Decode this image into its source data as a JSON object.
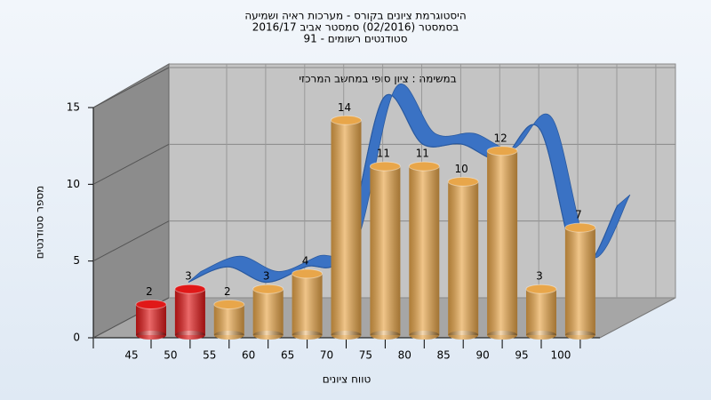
{
  "chart_data": {
    "type": "bar3d",
    "title": "היסטוגרמת ציונים בקורס - מערכות ראיה ושמיעה",
    "subtitle_lines": [
      "בסמסטר  (02/2016)  סמסטר אביב 2016/17",
      "סטודנטים רשומים - 91"
    ],
    "annotation": "במשימה : ציון סופי במחשב המרכזי",
    "x_label": "טווח ציונים",
    "y_label": "מספר סטודנטים",
    "categories": [
      "45",
      "50",
      "55",
      "60",
      "65",
      "70",
      "75",
      "80",
      "85",
      "90",
      "95",
      "100"
    ],
    "values": [
      2,
      3,
      2,
      3,
      4,
      14,
      11,
      11,
      10,
      12,
      3,
      7
    ],
    "colors": [
      "#e01818",
      "#e01818",
      "#e8a64a",
      "#e8a64a",
      "#e8a64a",
      "#e8a64a",
      "#e8a64a",
      "#e8a64a",
      "#e8a64a",
      "#e8a64a",
      "#e8a64a",
      "#e8a64a"
    ],
    "line_color": "#3a72c4",
    "ylim": [
      0,
      15
    ],
    "yticks": [
      0,
      5,
      10,
      15
    ],
    "grid": true
  }
}
